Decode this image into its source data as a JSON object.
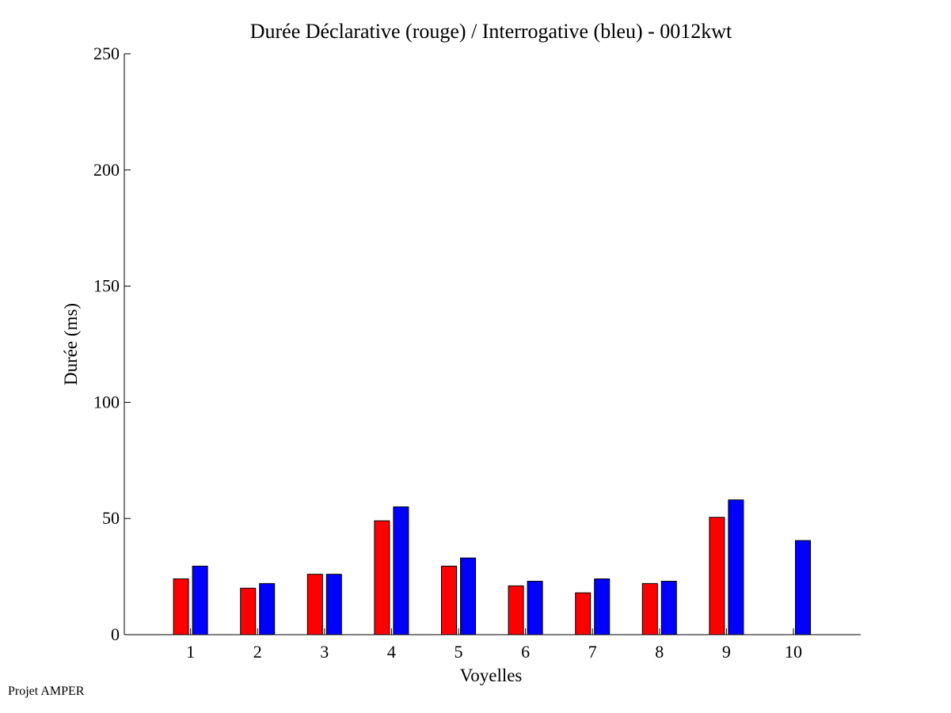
{
  "chart_data": {
    "type": "bar",
    "title": "Durée Déclarative (rouge) / Interrogative (bleu) - 0012kwt",
    "xlabel": "Voyelles",
    "ylabel": "Durée (ms)",
    "ylim": [
      0,
      250
    ],
    "yticks": [
      "0",
      "50",
      "100",
      "150",
      "200",
      "250"
    ],
    "categories": [
      "1",
      "2",
      "3",
      "4",
      "5",
      "6",
      "7",
      "8",
      "9",
      "10"
    ],
    "series": [
      {
        "color": "#ff0000",
        "values": [
          24,
          20,
          26,
          49,
          29.5,
          21,
          18,
          22,
          50.5,
          null
        ]
      },
      {
        "color": "#0000ff",
        "values": [
          29.5,
          22,
          26,
          55,
          33,
          23,
          24,
          23,
          58,
          40.5
        ]
      }
    ],
    "grid": false,
    "legend": "none"
  },
  "footer": {
    "credit": "Projet AMPER"
  }
}
